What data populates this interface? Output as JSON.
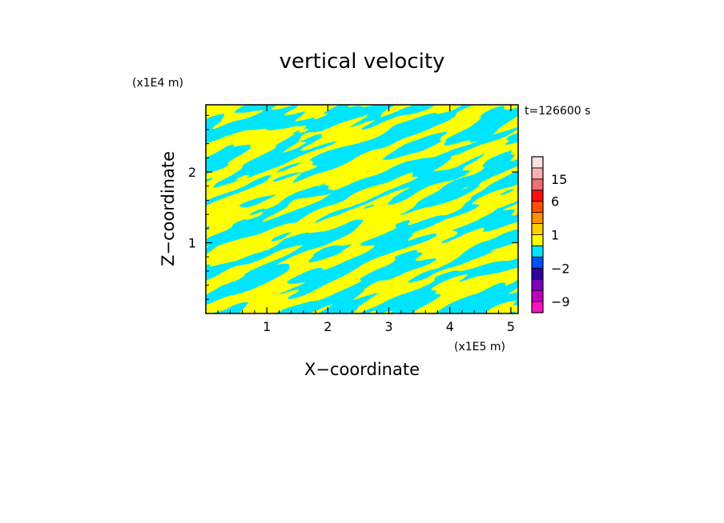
{
  "chart_data": {
    "type": "heatmap",
    "title": "vertical velocity",
    "xlabel": "X−coordinate",
    "ylabel": "Z−coordinate",
    "x_unit": "(x1E5 m)",
    "y_unit": "(x1E4 m)",
    "time_label": "t=126600 s",
    "xlim": [
      0.0,
      5.12
    ],
    "ylim": [
      0.0,
      2.95
    ],
    "x_ticks": [
      1,
      2,
      3,
      4,
      5
    ],
    "x_tick_labels": [
      "1",
      "2",
      "3",
      "4",
      "5"
    ],
    "y_ticks": [
      1,
      2
    ],
    "y_tick_labels": [
      "1",
      "2"
    ],
    "field_colors": {
      "positive": "#ffff00",
      "negative": "#00e5ff"
    },
    "colorbar": {
      "levels": [
        -12,
        -9,
        -6,
        -4,
        -2,
        -1,
        0,
        1,
        2,
        4,
        6,
        10,
        15,
        20,
        25
      ],
      "colors": [
        "#ff10c0",
        "#c000c0",
        "#8000c0",
        "#3000a0",
        "#0050ff",
        "#00e5ff",
        "#ffff00",
        "#ffd000",
        "#ff9000",
        "#ff5000",
        "#ff1010",
        "#f07070",
        "#f8b0b0",
        "#fde0e0"
      ],
      "tick_values": [
        -9,
        -2,
        1,
        6,
        15
      ],
      "tick_labels": [
        "−9",
        "−2",
        "1",
        "6",
        "15"
      ]
    }
  }
}
